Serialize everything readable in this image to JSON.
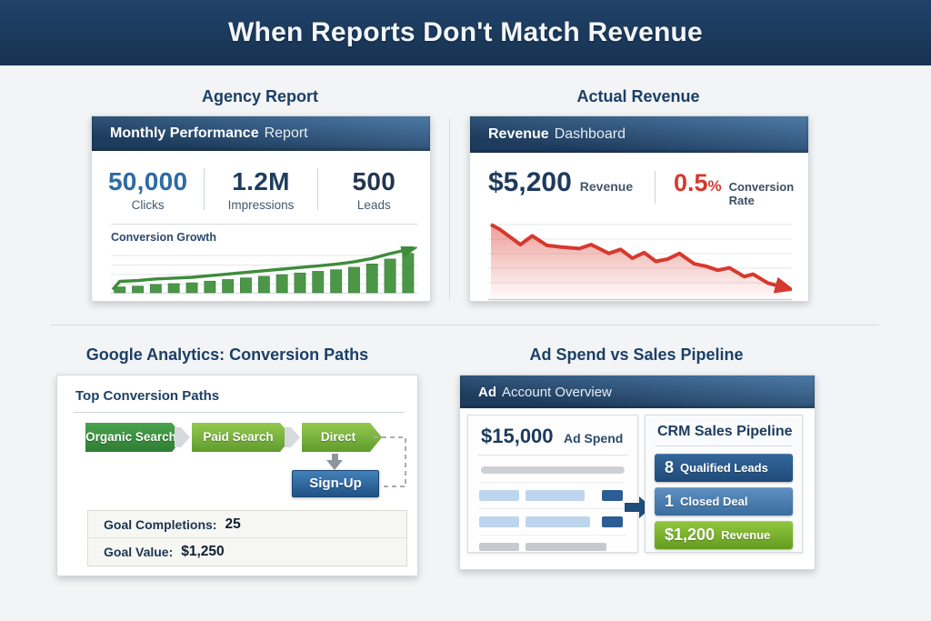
{
  "page": {
    "title_bar": "When Reports Don't Match Revenue"
  },
  "agency": {
    "heading": "Agency Report",
    "card_title_bold": "Monthly Performance",
    "card_title_rest": "Report",
    "stats": [
      {
        "value": "50,000",
        "label": "Clicks"
      },
      {
        "value": "1.2M",
        "label": "Impressions"
      },
      {
        "value": "500",
        "label": "Leads"
      }
    ],
    "chart_label": "Conversion Growth"
  },
  "revenue": {
    "heading": "Actual Revenue",
    "card_title_bold": "Revenue",
    "card_title_rest": "Dashboard",
    "revenue_value": "$5,200",
    "revenue_label": "Revenue",
    "conversion_value": "0.5",
    "conversion_suffix": "%",
    "conversion_label": "Conversion Rate"
  },
  "paths": {
    "heading": "Google Analytics: Conversion Paths",
    "card_title": "Top Conversion Paths",
    "steps": [
      "Organic Search",
      "Paid Search",
      "Direct"
    ],
    "signup_label": "Sign-Up",
    "goals": [
      {
        "label": "Goal Completions:",
        "value": "25"
      },
      {
        "label": "Goal Value:",
        "value": "$1,250"
      }
    ]
  },
  "adspend": {
    "heading": "Ad Spend vs Sales Pipeline",
    "card_title_bold": "Ad",
    "card_title_rest": "Account Overview",
    "spend_value": "$15,000",
    "spend_label": "Ad Spend",
    "crm_title": "CRM Sales Pipeline",
    "pipeline": [
      {
        "value": "8",
        "label": "Qualified Leads"
      },
      {
        "value": "1",
        "label": "Closed Deal"
      },
      {
        "value": "$1,200",
        "label": "Revenue"
      }
    ]
  },
  "colors": {
    "banner_navy": "#1a3a5e",
    "card_header_light": "#4d7aa6",
    "card_header_dark": "#1e3c5d",
    "stat_blue": "#2d6ba3",
    "stat_navy": "#1e3c5f",
    "alert_red": "#d6392e",
    "growth_green": "#4b9647",
    "chevron_green_dark": "#2e7d33",
    "chevron_green_light": "#94c94f",
    "signup_blue": "#2c639c",
    "pipeline_blue_dark": "#1f4a78",
    "pipeline_blue_mid": "#3a6d9e",
    "pipeline_green": "#649c1e"
  },
  "chart_data": [
    {
      "type": "bar",
      "title": "Conversion Growth",
      "panel": "Monthly Performance Report",
      "values": [
        5,
        6,
        8,
        9,
        10,
        12,
        14,
        16,
        18,
        20,
        22,
        24,
        26,
        29,
        33,
        39,
        46
      ],
      "ylim": [
        0,
        50
      ],
      "xlabel": "",
      "ylabel": "",
      "grid": true,
      "trend": "up",
      "color": "#4b9647",
      "trend_color": "#3e8c3c"
    },
    {
      "type": "line",
      "title": "Revenue trend (declining)",
      "panel": "Revenue Dashboard",
      "points_pct": [
        [
          0,
          8
        ],
        [
          3,
          14
        ],
        [
          10,
          33
        ],
        [
          14,
          22
        ],
        [
          19,
          34
        ],
        [
          24,
          36
        ],
        [
          30,
          38
        ],
        [
          34,
          33
        ],
        [
          40,
          44
        ],
        [
          44,
          39
        ],
        [
          48,
          50
        ],
        [
          52,
          43
        ],
        [
          56,
          54
        ],
        [
          60,
          51
        ],
        [
          64,
          44
        ],
        [
          69,
          57
        ],
        [
          73,
          60
        ],
        [
          77,
          65
        ],
        [
          81,
          62
        ],
        [
          86,
          73
        ],
        [
          89,
          70
        ],
        [
          94,
          81
        ],
        [
          99,
          86
        ]
      ],
      "grid": true,
      "trend": "down",
      "area_fill": true,
      "color": "#d6392e"
    }
  ]
}
